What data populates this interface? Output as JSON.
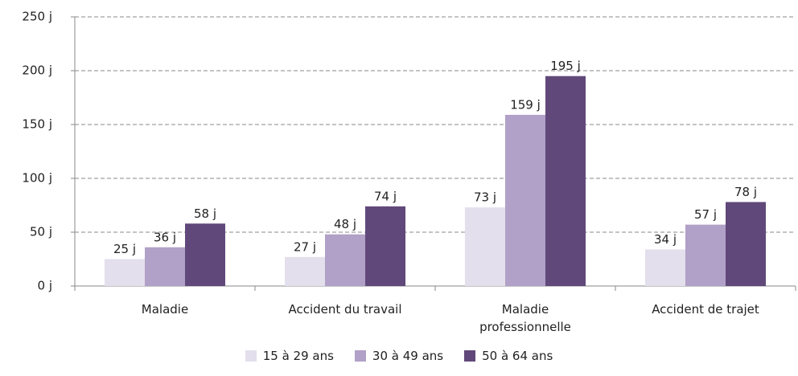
{
  "chart_data": {
    "type": "bar",
    "categories": [
      "Maladie",
      "Accident du travail",
      "Maladie professionnelle",
      "Accident de trajet"
    ],
    "series": [
      {
        "name": "15 à 29 ans",
        "color": "#e4dfec",
        "values": [
          25,
          27,
          73,
          34
        ],
        "value_labels": [
          "25 j",
          "27 j",
          "73 j",
          "34 j"
        ]
      },
      {
        "name": "30 à 49 ans",
        "color": "#b1a0c7",
        "values": [
          36,
          48,
          159,
          57
        ],
        "value_labels": [
          "36 j",
          "48 j",
          "159 j",
          "57 j"
        ]
      },
      {
        "name": "50 à 64 ans",
        "color": "#60497a",
        "values": [
          58,
          74,
          195,
          78
        ],
        "value_labels": [
          "58 j",
          "74 j",
          "195 j",
          "78 j"
        ]
      }
    ],
    "ylim": [
      0,
      250
    ],
    "yticks": [
      {
        "value": 0,
        "label": "0 j"
      },
      {
        "value": 50,
        "label": "50 j"
      },
      {
        "value": 100,
        "label": "100 j"
      },
      {
        "value": 150,
        "label": "150 j"
      },
      {
        "value": 200,
        "label": "200 j"
      },
      {
        "value": 250,
        "label": "250 j"
      }
    ],
    "grid": true,
    "legend": "bottom"
  }
}
